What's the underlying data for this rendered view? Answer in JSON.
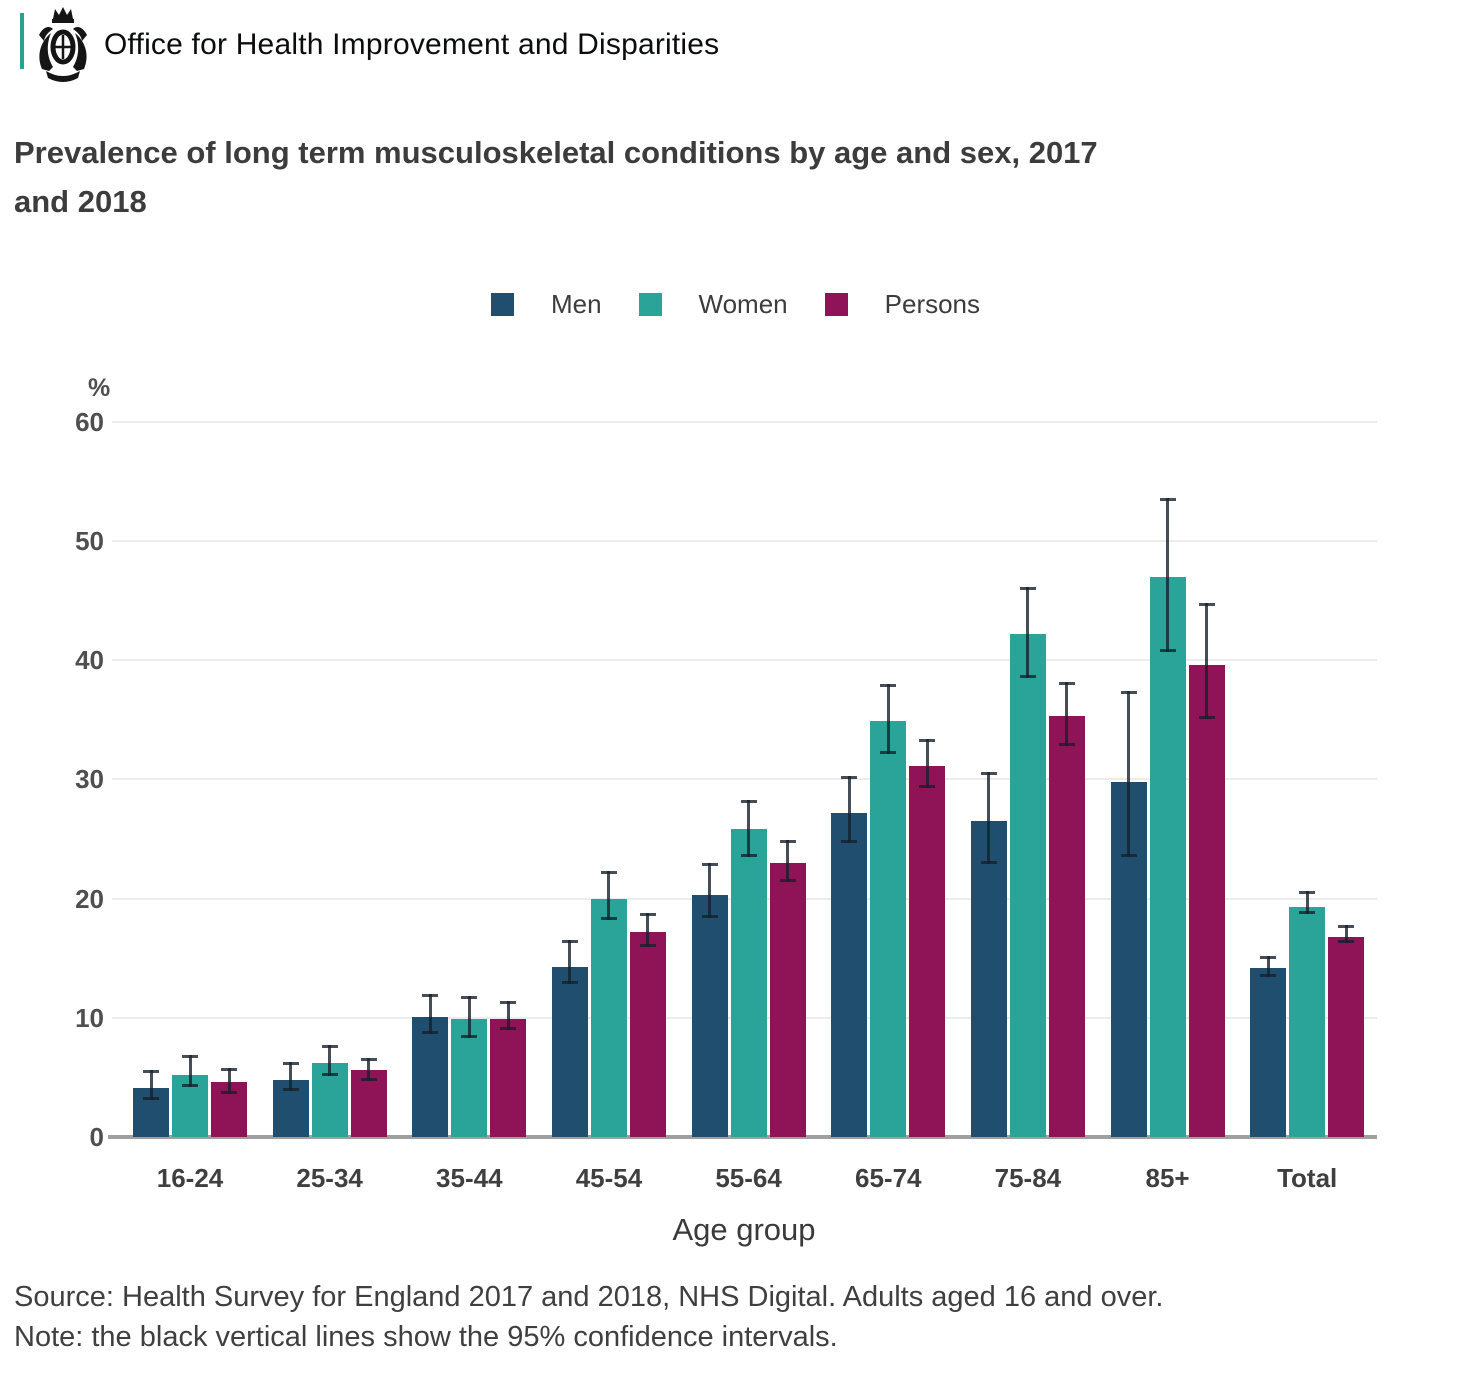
{
  "header": {
    "org_name": "Office for Health Improvement and Disparities"
  },
  "title": {
    "lines": [
      "Prevalence of long term musculoskeletal conditions by age and sex, 2017",
      "and 2018"
    ]
  },
  "chart_data": {
    "type": "bar",
    "title": "Prevalence of long term musculoskeletal conditions by age and sex, 2017 and 2018",
    "xlabel": "Age group",
    "ylabel": "%",
    "ylim": [
      0,
      60
    ],
    "yticks": [
      0,
      10,
      20,
      30,
      40,
      50,
      60
    ],
    "grid": true,
    "legend_position": "top",
    "error_bars": "95% confidence intervals",
    "categories": [
      "16-24",
      "25-34",
      "35-44",
      "45-54",
      "55-64",
      "65-74",
      "75-84",
      "85+",
      "Total"
    ],
    "series": [
      {
        "name": "Men",
        "color": "#1f4e6e",
        "values": [
          4.1,
          4.8,
          10.1,
          14.3,
          20.3,
          27.2,
          26.5,
          29.8,
          14.2
        ],
        "ci_low": [
          3.1,
          3.9,
          8.6,
          12.8,
          18.4,
          24.7,
          22.9,
          23.5,
          13.4
        ],
        "ci_high": [
          5.6,
          6.3,
          12.0,
          16.5,
          23.0,
          30.3,
          30.6,
          37.4,
          15.2
        ]
      },
      {
        "name": "Women",
        "color": "#2aa399",
        "values": [
          5.2,
          6.2,
          9.9,
          20.0,
          25.8,
          34.9,
          42.2,
          47.0,
          19.3
        ],
        "ci_low": [
          4.2,
          5.1,
          8.3,
          18.2,
          23.5,
          32.1,
          38.5,
          40.7,
          18.7
        ],
        "ci_high": [
          6.9,
          7.7,
          11.8,
          22.3,
          28.3,
          38.0,
          46.1,
          53.6,
          20.6
        ]
      },
      {
        "name": "Persons",
        "color": "#8e1457",
        "values": [
          4.6,
          5.6,
          9.9,
          17.2,
          23.0,
          31.1,
          35.3,
          39.6,
          16.8
        ],
        "ci_low": [
          3.6,
          4.7,
          9.0,
          15.9,
          21.4,
          29.3,
          32.8,
          35.1,
          16.3
        ],
        "ci_high": [
          5.8,
          6.6,
          11.4,
          18.8,
          24.9,
          33.4,
          38.2,
          44.8,
          17.8
        ]
      }
    ]
  },
  "footer": {
    "source_line": "Source: Health Survey for England 2017 and 2018, NHS Digital. Adults aged 16 and over.",
    "note_line": "Note: the black vertical lines show the 95% confidence intervals."
  },
  "colors": {
    "accent_bar": "#28a197",
    "gridline": "#ececec",
    "axis_line": "#a0a0a0",
    "ci": "rgba(22,32,44,0.8)",
    "title_text": "#3c3c3c",
    "header_text": "#0b0c0c"
  }
}
